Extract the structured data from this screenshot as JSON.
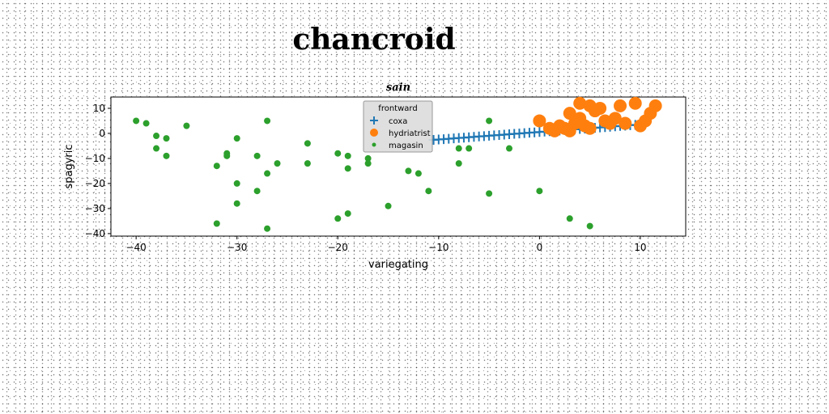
{
  "figure": {
    "title": "chancroid"
  },
  "chart_data": {
    "type": "scatter",
    "title": "sain",
    "xlabel": "variegating",
    "ylabel": "spagyric",
    "xlim": [
      -42.5,
      14.5
    ],
    "ylim": [
      -41,
      14.5
    ],
    "xticks": [
      -40,
      -30,
      -20,
      -10,
      0,
      10
    ],
    "yticks": [
      10,
      0,
      -10,
      -20,
      -30,
      -40
    ],
    "tick_labels_x": [
      "−40",
      "−30",
      "−20",
      "−10",
      "0",
      "10"
    ],
    "tick_labels_y": [
      "10",
      "0",
      "−10",
      "−20",
      "−30",
      "−40"
    ],
    "grid": false,
    "legend": {
      "title": "frontward",
      "placement": "upper-center"
    },
    "series": [
      {
        "name": "coxa",
        "marker": "plus",
        "color": "#1f77b4",
        "x": [
          -10.5,
          -10,
          -9.5,
          -9,
          -8.5,
          -8,
          -7.5,
          -7,
          -6.5,
          -6,
          -5.5,
          -5,
          -4.5,
          -4,
          -3.5,
          -3,
          -2.5,
          -2,
          -1.5,
          -1,
          -0.5,
          0,
          0.5,
          1,
          1.5,
          2,
          2.5,
          3,
          3.5,
          4,
          4.5,
          5,
          5.5,
          6,
          6.5,
          7,
          7.5,
          8,
          8.5,
          9,
          9.5,
          10
        ],
        "y": [
          -2.6,
          -2.45,
          -2.3,
          -2.15,
          -2.0,
          -1.85,
          -1.7,
          -1.55,
          -1.4,
          -1.25,
          -1.1,
          -0.95,
          -0.8,
          -0.65,
          -0.5,
          -0.35,
          -0.2,
          -0.05,
          0.1,
          0.25,
          0.4,
          0.55,
          0.7,
          0.85,
          1.0,
          1.15,
          1.3,
          1.45,
          1.6,
          1.75,
          1.9,
          2.05,
          2.2,
          2.35,
          2.5,
          2.65,
          2.8,
          2.95,
          3.1,
          3.25,
          3.4,
          3.55
        ]
      },
      {
        "name": "hydriatrist",
        "marker": "circle-large",
        "color": "#ff7f0e",
        "x": [
          0,
          1,
          1.5,
          2,
          2.5,
          3,
          3,
          3.5,
          4,
          4,
          4.5,
          5,
          5,
          5.5,
          6,
          6.5,
          7,
          7.5,
          8,
          8.5,
          9.5,
          10,
          10.5,
          11,
          11.5
        ],
        "y": [
          5,
          2,
          1,
          3,
          2,
          8,
          1,
          4,
          12,
          6,
          3,
          11,
          2,
          9,
          10,
          5,
          4,
          6,
          11,
          4,
          12,
          3,
          5,
          8,
          11
        ]
      },
      {
        "name": "magasin",
        "marker": "circle-small",
        "color": "#2ca02c",
        "x": [
          -40,
          -39,
          -38,
          -38,
          -37,
          -37,
          -35,
          -32,
          -32,
          -31,
          -31,
          -30,
          -30,
          -30,
          -28,
          -28,
          -27,
          -27,
          -27,
          -26,
          -23,
          -23,
          -20,
          -20,
          -19,
          -19,
          -19,
          -17,
          -17,
          -15,
          -13,
          -12,
          -11,
          -8,
          -8,
          -7,
          -5,
          -5,
          -3,
          0,
          3,
          5
        ],
        "y": [
          5,
          4,
          -1,
          -6,
          -2,
          -9,
          3,
          -13,
          -36,
          -8,
          -9,
          -2,
          -20,
          -28,
          -9,
          -23,
          5,
          -16,
          -38,
          -12,
          -4,
          -12,
          -8,
          -34,
          -9,
          -14,
          -32,
          -10,
          -12,
          -29,
          -15,
          -16,
          -23,
          -6,
          -12,
          -6,
          5,
          -24,
          -6,
          -23,
          -34,
          -37
        ]
      }
    ]
  }
}
